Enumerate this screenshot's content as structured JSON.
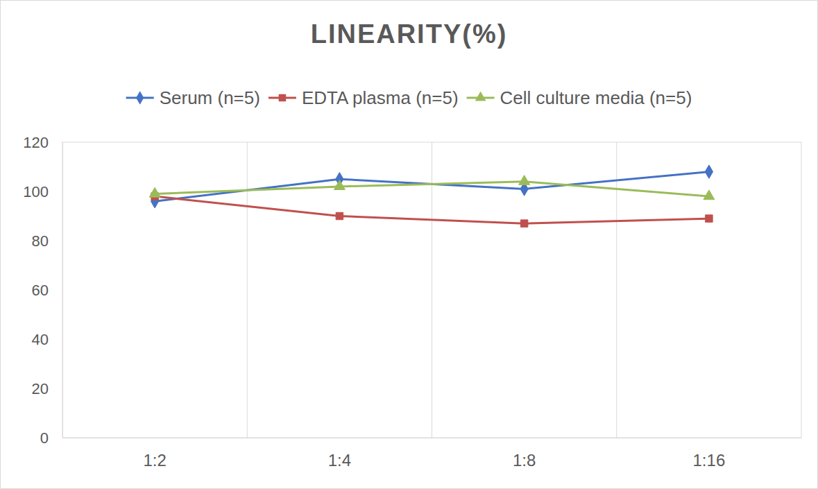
{
  "chart_data": {
    "type": "line",
    "title": "LINEARITY(%)",
    "categories": [
      "1:2",
      "1:4",
      "1:8",
      "1:16"
    ],
    "series": [
      {
        "name": "Serum (n=5)",
        "color": "#4472c4",
        "marker": "diamond",
        "values": [
          96,
          105,
          101,
          108
        ]
      },
      {
        "name": "EDTA plasma (n=5)",
        "color": "#c0504d",
        "marker": "square",
        "values": [
          98,
          90,
          87,
          89
        ]
      },
      {
        "name": "Cell culture media (n=5)",
        "color": "#9bbb59",
        "marker": "triangle",
        "values": [
          99,
          102,
          104,
          98
        ]
      }
    ],
    "ylim": [
      0,
      120
    ],
    "yticks": [
      0,
      20,
      40,
      60,
      80,
      100,
      120
    ],
    "grid": true,
    "legend": "top"
  }
}
